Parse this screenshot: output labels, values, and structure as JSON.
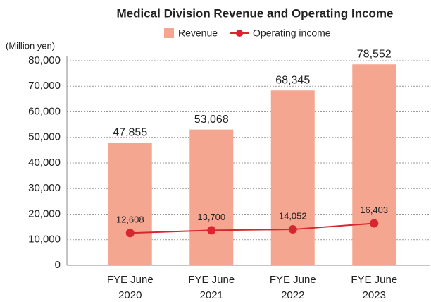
{
  "chart_data": {
    "type": "bar",
    "title": "Medical Division Revenue and Operating Income",
    "y_label": "(Million yen)",
    "categories": [
      "FYE June 2020",
      "FYE June 2021",
      "FYE June 2022",
      "FYE June 2023"
    ],
    "series": [
      {
        "name": "Revenue",
        "type": "bar",
        "color": "#f5a691",
        "values": [
          47855,
          53068,
          68345,
          78552
        ],
        "value_labels": [
          "47,855",
          "53,068",
          "68,345",
          "78,552"
        ]
      },
      {
        "name": "Operating income",
        "type": "line",
        "color": "#d9262e",
        "values": [
          12608,
          13700,
          14052,
          16403
        ],
        "value_labels": [
          "12,608",
          "13,700",
          "14,052",
          "16,403"
        ]
      }
    ],
    "ylim": [
      0,
      80000
    ],
    "yticks": [
      0,
      {
        "value": 10000,
        "label": "10,000"
      },
      {
        "value": 20000,
        "label": "20,000"
      },
      {
        "value": 30000,
        "label": "30,000"
      },
      {
        "value": 40000,
        "label": "40,000"
      },
      {
        "value": 50000,
        "label": "50,000"
      },
      {
        "value": 60000,
        "label": "60,000"
      },
      {
        "value": 70000,
        "label": "70,000"
      },
      {
        "value": 80000,
        "label": "80,000"
      }
    ],
    "grid": true,
    "legend": "top"
  }
}
